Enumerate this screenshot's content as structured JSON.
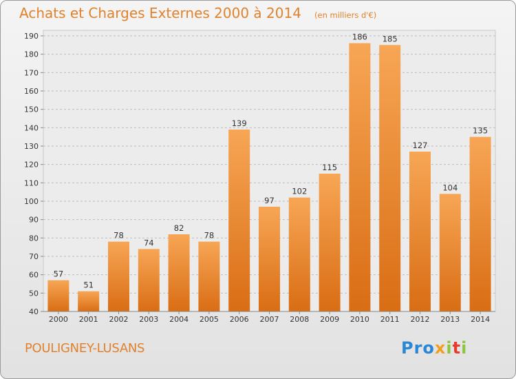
{
  "header": {
    "title": "Achats et Charges Externes 2000 à 2014",
    "subtitle": "(en milliers d'€)"
  },
  "footer": {
    "location": "POULIGNEY-LUSANS",
    "logo_text": "Proxiti"
  },
  "colors": {
    "bar_top": "#f7a655",
    "bar_bottom": "#d96d14",
    "text_accent": "#e0822d"
  },
  "chart_data": {
    "type": "bar",
    "title": "Achats et Charges Externes 2000 à 2014",
    "subtitle": "(en milliers d'€)",
    "categories": [
      "2000",
      "2001",
      "2002",
      "2003",
      "2004",
      "2005",
      "2006",
      "2007",
      "2008",
      "2009",
      "2010",
      "2011",
      "2012",
      "2013",
      "2014"
    ],
    "values": [
      57,
      51,
      78,
      74,
      82,
      78,
      139,
      97,
      102,
      115,
      186,
      185,
      127,
      104,
      135
    ],
    "ylim": [
      40,
      190
    ],
    "yticks": [
      40,
      50,
      60,
      70,
      80,
      90,
      100,
      110,
      120,
      130,
      140,
      150,
      160,
      170,
      180,
      190
    ],
    "grid": true,
    "data_labels": true,
    "xlabel": "",
    "ylabel": ""
  }
}
